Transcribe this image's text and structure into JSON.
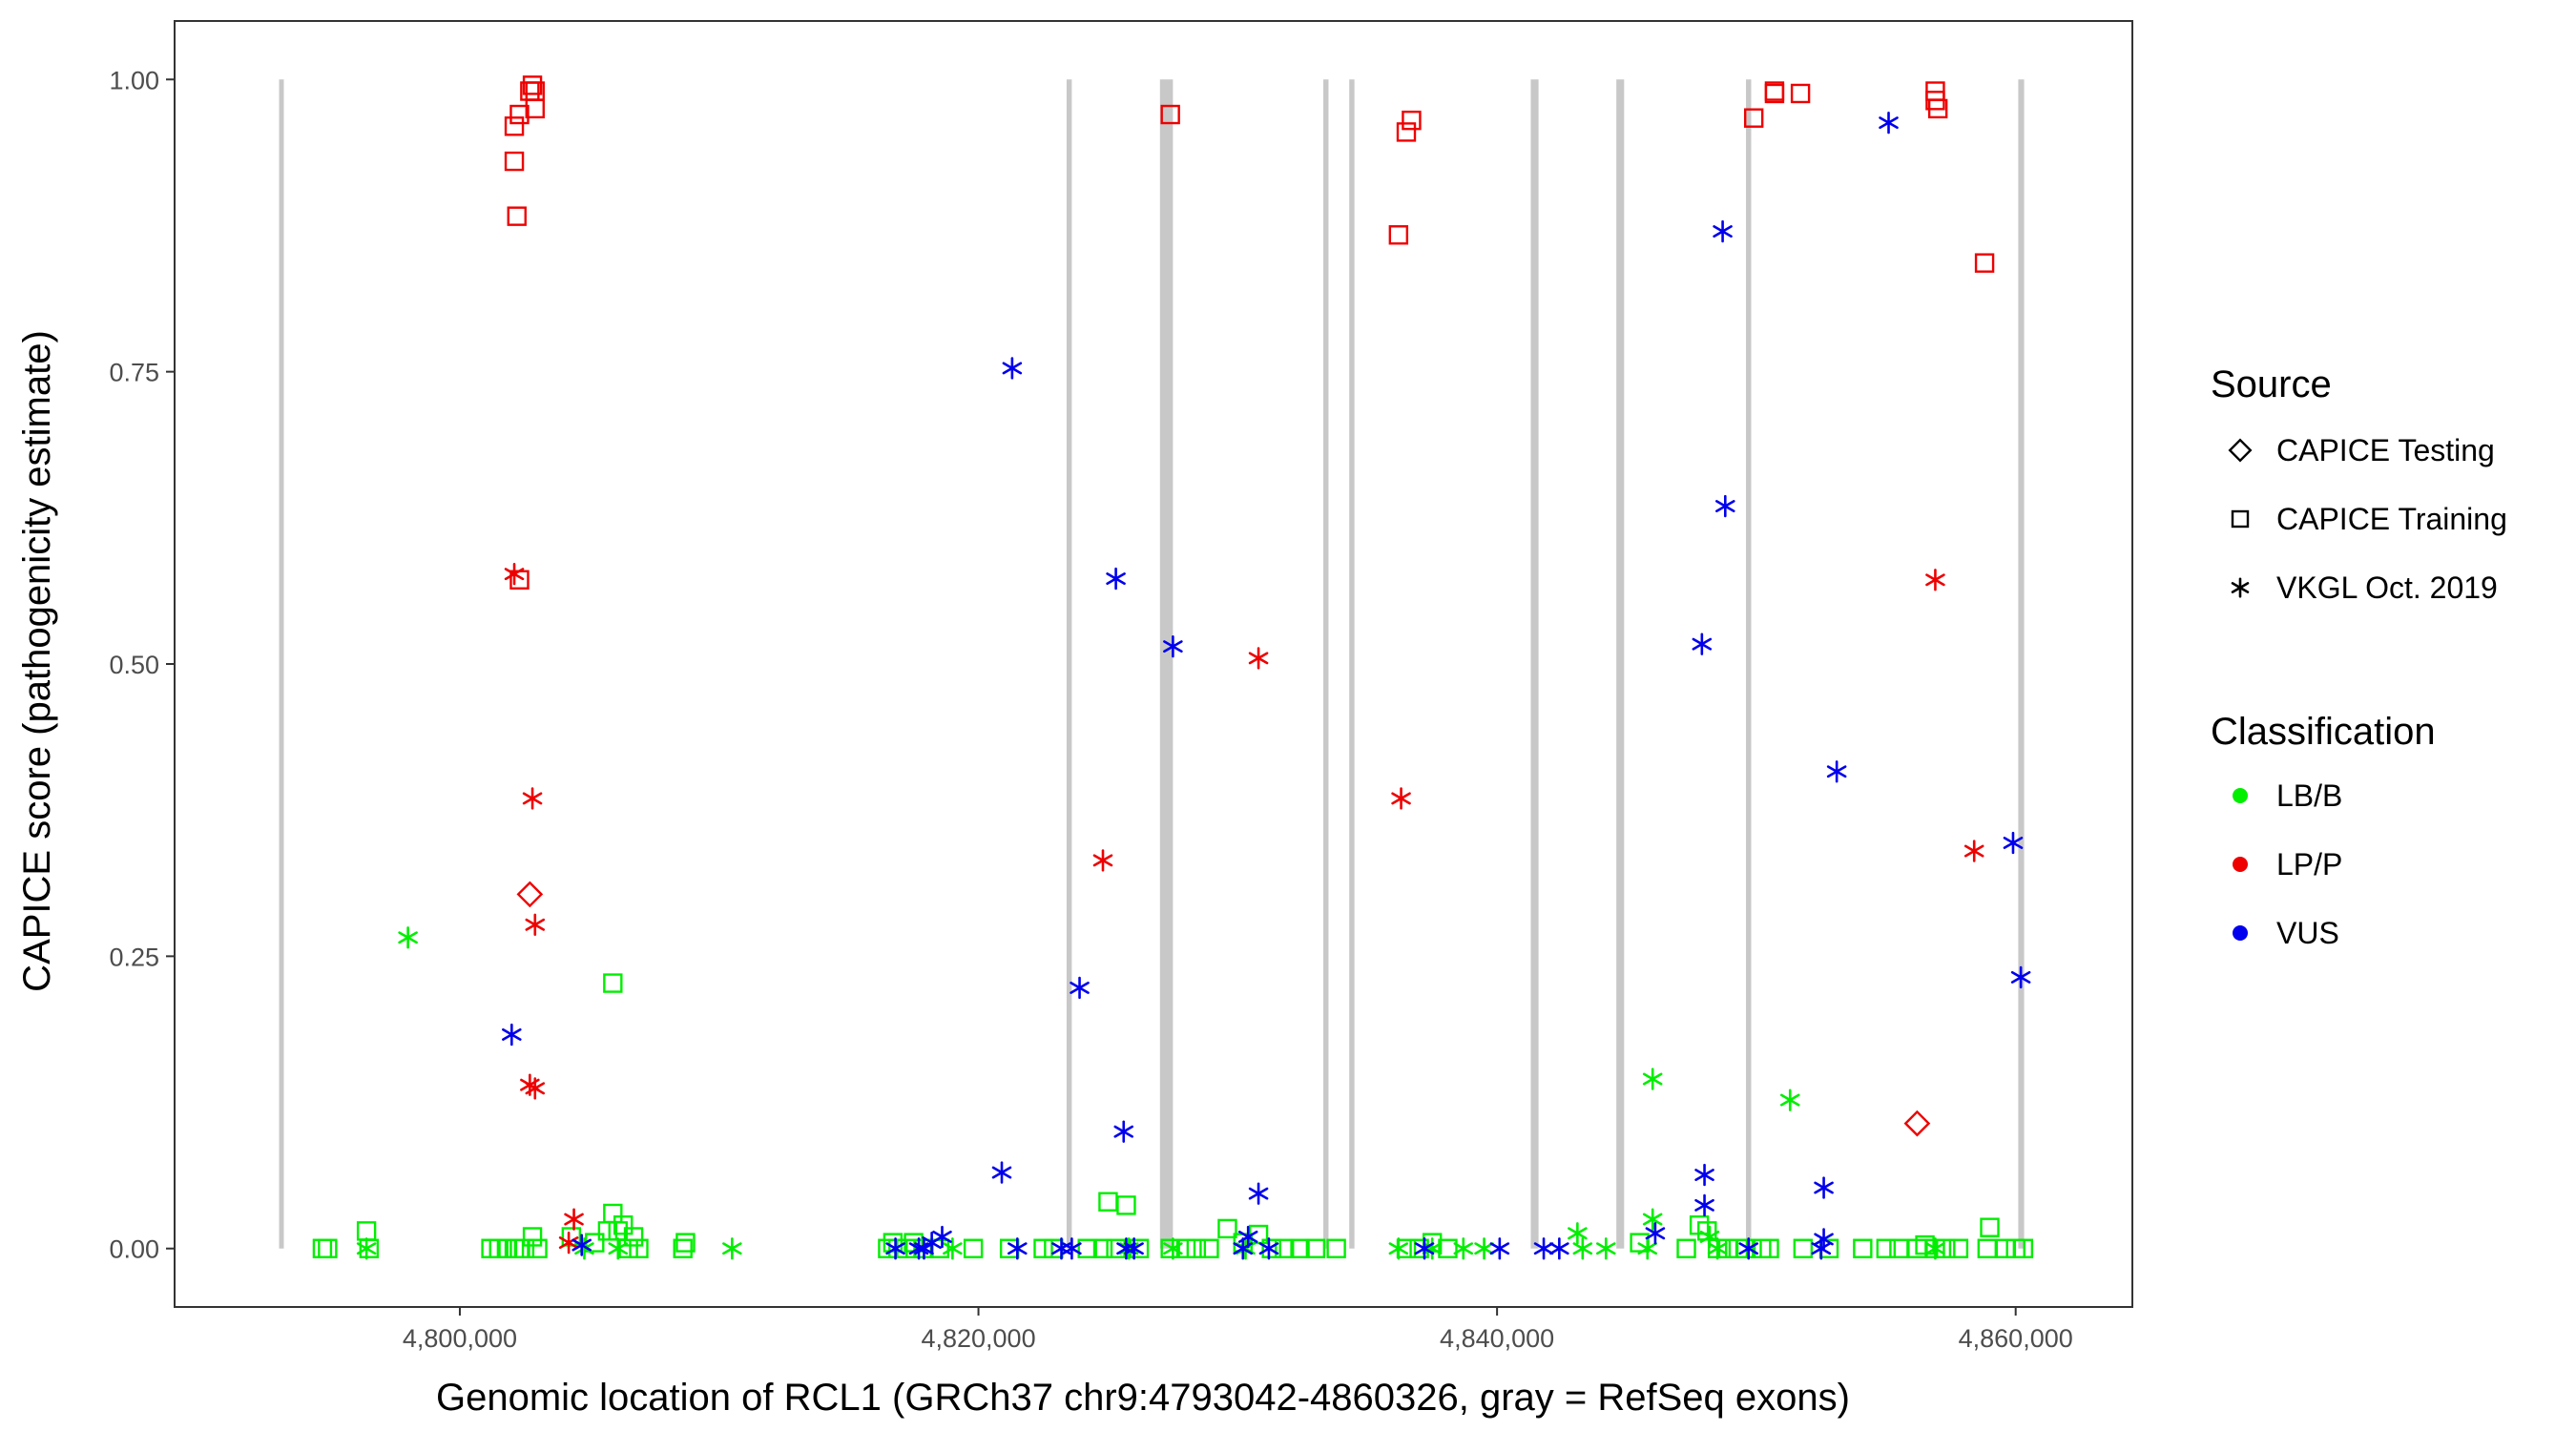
{
  "chart_data": {
    "type": "scatter",
    "xlabel": "Genomic location of RCL1 (GRCh37 chr9:4793042-4860326, gray = RefSeq exons)",
    "ylabel": "CAPICE score (pathogenicity estimate)",
    "xlim": [
      4789000,
      4864500
    ],
    "ylim": [
      -0.05,
      1.05
    ],
    "x_ticks": [
      4800000,
      4820000,
      4840000,
      4860000
    ],
    "x_tick_labels": [
      "4,800,000",
      "4,820,000",
      "4,840,000",
      "4,860,000"
    ],
    "y_ticks": [
      0,
      0.25,
      0.5,
      0.75,
      1
    ],
    "y_tick_labels": [
      "0.00",
      "0.25",
      "0.50",
      "0.75",
      "1.00"
    ],
    "grid": false,
    "legend_position": "right",
    "colors": {
      "LB/B": "#00ee00",
      "LP/P": "#ee0000",
      "VUS": "#0000ee",
      "exon": "#c8c8c8",
      "panel_border": "#333333"
    },
    "exons": [
      [
        4793042,
        4793200
      ],
      [
        4823400,
        4823600
      ],
      [
        4827000,
        4827500
      ],
      [
        4833300,
        4833500
      ],
      [
        4834300,
        4834500
      ],
      [
        4841300,
        4841600
      ],
      [
        4844600,
        4844900
      ],
      [
        4849600,
        4849800
      ],
      [
        4860100,
        4860326
      ]
    ],
    "legend": {
      "source": {
        "title": "Source",
        "entries": [
          {
            "label": "CAPICE Testing",
            "shape": "diamond"
          },
          {
            "label": "CAPICE Training",
            "shape": "square"
          },
          {
            "label": "VKGL Oct. 2019",
            "shape": "asterisk"
          }
        ]
      },
      "classification": {
        "title": "Classification",
        "entries": [
          {
            "label": "LB/B",
            "color": "#00ee00"
          },
          {
            "label": "LP/P",
            "color": "#ee0000"
          },
          {
            "label": "VUS",
            "color": "#0000ee"
          }
        ]
      }
    },
    "series": [
      {
        "name": "LB/B",
        "source": "CAPICE Training",
        "points": [
          [
            4794700,
            0
          ],
          [
            4794900,
            0
          ],
          [
            4796400,
            0.015
          ],
          [
            4796500,
            0
          ],
          [
            4801200,
            0
          ],
          [
            4801500,
            0
          ],
          [
            4801800,
            0
          ],
          [
            4802100,
            0
          ],
          [
            4802300,
            0
          ],
          [
            4802500,
            0
          ],
          [
            4802800,
            0.01
          ],
          [
            4803000,
            0
          ],
          [
            4804300,
            0.01
          ],
          [
            4805200,
            0.005
          ],
          [
            4805700,
            0.015
          ],
          [
            4805900,
            0.03
          ],
          [
            4806100,
            0.015
          ],
          [
            4806300,
            0.02
          ],
          [
            4806500,
            0
          ],
          [
            4806700,
            0.01
          ],
          [
            4806900,
            0
          ],
          [
            4805900,
            0.227
          ],
          [
            4808600,
            0
          ],
          [
            4808700,
            0.005
          ],
          [
            4816500,
            0
          ],
          [
            4816700,
            0.005
          ],
          [
            4816900,
            0
          ],
          [
            4817200,
            0
          ],
          [
            4817500,
            0.005
          ],
          [
            4817900,
            0
          ],
          [
            4818500,
            0
          ],
          [
            4819800,
            0
          ],
          [
            4821200,
            0
          ],
          [
            4822500,
            0
          ],
          [
            4822900,
            0
          ],
          [
            4824200,
            0
          ],
          [
            4824800,
            0
          ],
          [
            4825000,
            0.04
          ],
          [
            4825300,
            0
          ],
          [
            4825700,
            0.037
          ],
          [
            4826200,
            0
          ],
          [
            4827400,
            0
          ],
          [
            4828000,
            0
          ],
          [
            4828400,
            0
          ],
          [
            4828900,
            0
          ],
          [
            4829600,
            0.017
          ],
          [
            4830200,
            0.005
          ],
          [
            4830800,
            0.012
          ],
          [
            4831300,
            0
          ],
          [
            4831800,
            0
          ],
          [
            4832400,
            0
          ],
          [
            4833000,
            0
          ],
          [
            4833800,
            0
          ],
          [
            4836500,
            0
          ],
          [
            4837000,
            0
          ],
          [
            4837500,
            0.005
          ],
          [
            4838100,
            0
          ],
          [
            4845500,
            0.005
          ],
          [
            4847300,
            0
          ],
          [
            4847800,
            0.02
          ],
          [
            4848100,
            0.015
          ],
          [
            4848500,
            0
          ],
          [
            4848900,
            0
          ],
          [
            4849300,
            0
          ],
          [
            4849600,
            0
          ],
          [
            4850200,
            0
          ],
          [
            4850500,
            0
          ],
          [
            4851800,
            0
          ],
          [
            4852800,
            0
          ],
          [
            4854100,
            0
          ],
          [
            4855000,
            0
          ],
          [
            4855500,
            0
          ],
          [
            4856200,
            0
          ],
          [
            4856500,
            0.003
          ],
          [
            4856900,
            0
          ],
          [
            4857300,
            0
          ],
          [
            4857800,
            0
          ],
          [
            4858900,
            0
          ],
          [
            4859000,
            0.018
          ],
          [
            4859600,
            0
          ],
          [
            4860000,
            0
          ],
          [
            4860300,
            0
          ]
        ]
      },
      {
        "name": "LB/B",
        "source": "VKGL Oct. 2019",
        "points": [
          [
            4798000,
            0.266
          ],
          [
            4796400,
            0
          ],
          [
            4810500,
            0
          ],
          [
            4804800,
            0
          ],
          [
            4806100,
            0
          ],
          [
            4819000,
            0
          ],
          [
            4825800,
            0
          ],
          [
            4827500,
            0
          ],
          [
            4830300,
            0
          ],
          [
            4836200,
            0
          ],
          [
            4837500,
            0
          ],
          [
            4838700,
            0
          ],
          [
            4839500,
            0
          ],
          [
            4843100,
            0.013
          ],
          [
            4843300,
            0
          ],
          [
            4844200,
            0
          ],
          [
            4845800,
            0
          ],
          [
            4846000,
            0.145
          ],
          [
            4846000,
            0.025
          ],
          [
            4848200,
            0.01
          ],
          [
            4848500,
            0
          ],
          [
            4851300,
            0.127
          ],
          [
            4856900,
            0
          ]
        ]
      },
      {
        "name": "LP/P",
        "source": "CAPICE Training",
        "points": [
          [
            4802200,
            0.883
          ],
          [
            4802100,
            0.93
          ],
          [
            4802100,
            0.96
          ],
          [
            4802300,
            0.97
          ],
          [
            4802700,
            0.99
          ],
          [
            4802800,
            0.995
          ],
          [
            4802900,
            0.99
          ],
          [
            4802900,
            0.975
          ],
          [
            4802300,
            0.572
          ],
          [
            4827400,
            0.97
          ],
          [
            4836200,
            0.867
          ],
          [
            4836500,
            0.955
          ],
          [
            4836700,
            0.965
          ],
          [
            4849900,
            0.967
          ],
          [
            4850700,
            0.988
          ],
          [
            4850700,
            0.99
          ],
          [
            4851700,
            0.988
          ],
          [
            4856900,
            0.99
          ],
          [
            4856900,
            0.982
          ],
          [
            4857000,
            0.975
          ],
          [
            4858800,
            0.843
          ]
        ]
      },
      {
        "name": "LP/P",
        "source": "CAPICE Testing",
        "points": [
          [
            4802700,
            0.303
          ],
          [
            4856200,
            0.107
          ]
        ]
      },
      {
        "name": "LP/P",
        "source": "VKGL Oct. 2019",
        "points": [
          [
            4802100,
            0.577
          ],
          [
            4802800,
            0.385
          ],
          [
            4802900,
            0.277
          ],
          [
            4802700,
            0.14
          ],
          [
            4802900,
            0.137
          ],
          [
            4804400,
            0.025
          ],
          [
            4804200,
            0.005
          ],
          [
            4824800,
            0.332
          ],
          [
            4830800,
            0.505
          ],
          [
            4836300,
            0.385
          ],
          [
            4856900,
            0.572
          ],
          [
            4858400,
            0.34
          ]
        ]
      },
      {
        "name": "VUS",
        "source": "VKGL Oct. 2019",
        "points": [
          [
            4802000,
            0.183
          ],
          [
            4804700,
            0.003
          ],
          [
            4816800,
            0
          ],
          [
            4817700,
            0
          ],
          [
            4817900,
            0
          ],
          [
            4818200,
            0.005
          ],
          [
            4818600,
            0.01
          ],
          [
            4820900,
            0.065
          ],
          [
            4821300,
            0.753
          ],
          [
            4821500,
            0
          ],
          [
            4823200,
            0
          ],
          [
            4823600,
            0
          ],
          [
            4823900,
            0.223
          ],
          [
            4825300,
            0.573
          ],
          [
            4825600,
            0.1
          ],
          [
            4825700,
            0
          ],
          [
            4826000,
            0
          ],
          [
            4827500,
            0.515
          ],
          [
            4830200,
            0
          ],
          [
            4830400,
            0.01
          ],
          [
            4830800,
            0.047
          ],
          [
            4831200,
            0
          ],
          [
            4837200,
            0
          ],
          [
            4840100,
            0
          ],
          [
            4841800,
            0
          ],
          [
            4842400,
            0
          ],
          [
            4846100,
            0.013
          ],
          [
            4847900,
            0.517
          ],
          [
            4848000,
            0.063
          ],
          [
            4848000,
            0.037
          ],
          [
            4848700,
            0.87
          ],
          [
            4848800,
            0.635
          ],
          [
            4849700,
            0
          ],
          [
            4852500,
            0
          ],
          [
            4852600,
            0.008
          ],
          [
            4852600,
            0.052
          ],
          [
            4853100,
            0.408
          ],
          [
            4855100,
            0.963
          ],
          [
            4859900,
            0.347
          ],
          [
            4860200,
            0.232
          ]
        ]
      }
    ]
  }
}
